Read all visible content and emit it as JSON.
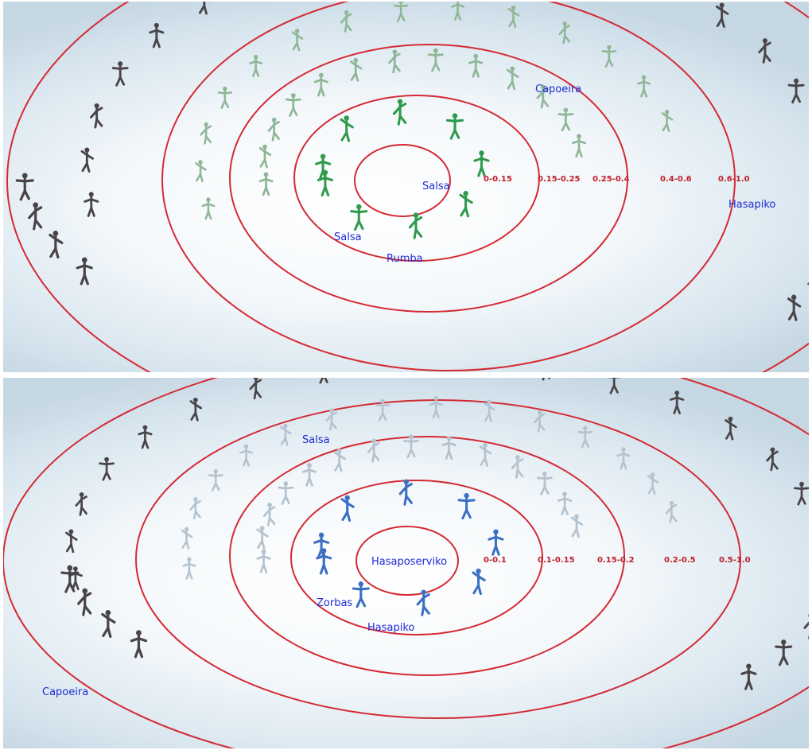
{
  "panels": [
    {
      "name": "top",
      "accent": "#2e9a4c",
      "ring_labels": [
        "0-0.15",
        "0.15-0.25",
        "0.25-0.4",
        "0.4-0.6",
        "0.6-1.0"
      ],
      "dance_labels": [
        "Salsa",
        "Salsa",
        "Rumba",
        "Capoeira",
        "Hasapiko"
      ]
    },
    {
      "name": "bottom",
      "accent": "#3a6fc4",
      "ring_labels": [
        "0-0.1",
        "0.1-0.15",
        "0.15-0.2",
        "0.2-0.5",
        "0.5-1.0"
      ],
      "dance_labels": [
        "Hasaposerviko",
        "Zorbas",
        "Hasapiko",
        "Salsa",
        "Capoeira"
      ]
    }
  ],
  "colors": {
    "ring": "#d42a33",
    "label_text": "#1f2bd6",
    "figure_near_top": "#2e9a4c",
    "figure_mid_top": "#8fb797",
    "figure_near_bottom": "#3a6fc4",
    "figure_mid_bottom": "#b4c3cf",
    "figure_far": "#4a4448"
  }
}
